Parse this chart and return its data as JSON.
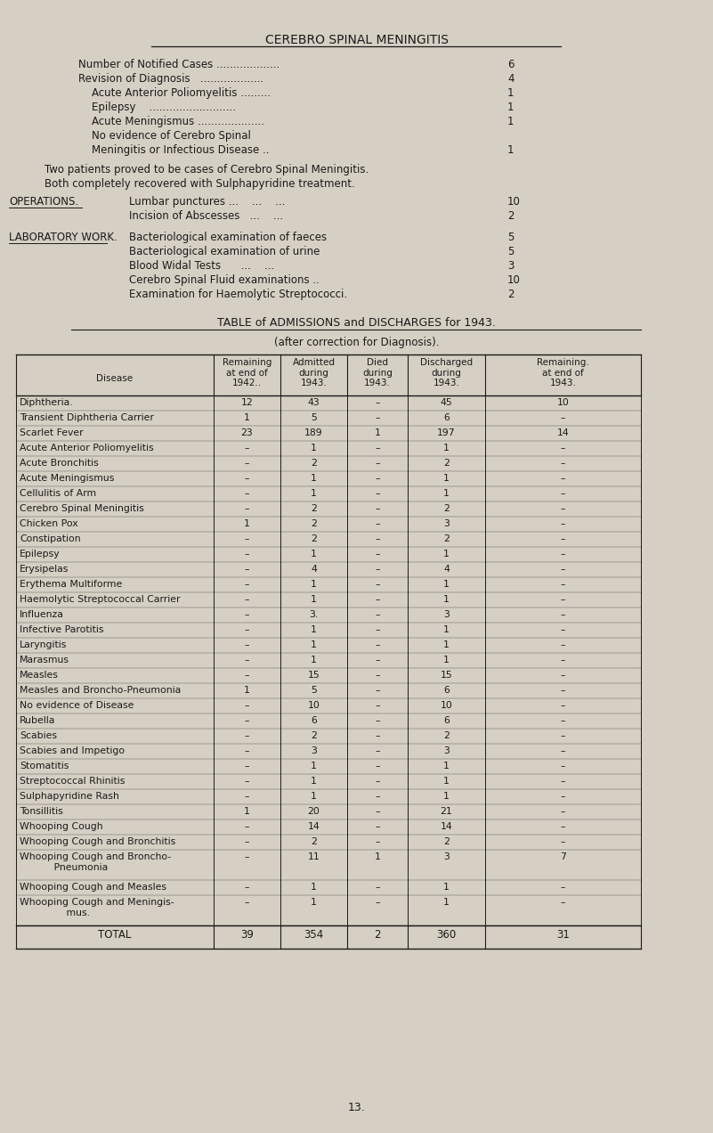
{
  "bg_color": "#d6d0c4",
  "text_color": "#1a1a1a",
  "title": "CEREBRO SPINAL MENINGITIS",
  "section1_lines": [
    [
      "Number of Notified Cases ...................",
      "6",
      0
    ],
    [
      "Revision of Diagnosis   ...................",
      "4",
      0
    ],
    [
      "    Acute Anterior Poliomyelitis .........",
      "1",
      1
    ],
    [
      "    Epilepsy    ..........................",
      "1",
      1
    ],
    [
      "    Acute Meningismus ....................",
      "1",
      1
    ],
    [
      "    No evidence of Cerebro Spinal",
      "",
      1
    ],
    [
      "    Meningitis or Infectious Disease .. ",
      "1",
      1
    ]
  ],
  "paragraph": [
    "Two patients proved to be cases of Cerebro Spinal Meningitis.",
    "Both completely recovered with Sulphapyridine treatment."
  ],
  "operations_label": "OPERATIONS.",
  "operations": [
    {
      "label": "Lumbar punctures ...    ...    ...   ",
      "value": "10"
    },
    {
      "label": "Incision of Abscesses   ...    ...  ",
      "value": "2"
    }
  ],
  "lab_label": "LABORATORY WORK.",
  "lab": [
    {
      "label": "Bacteriological examination of faeces ",
      "value": "5"
    },
    {
      "label": "Bacteriological examination of urine  ",
      "value": "5"
    },
    {
      "label": "Blood Widal Tests      ...    ...     ",
      "value": "3"
    },
    {
      "label": "Cerebro Spinal Fluid examinations ..  ",
      "value": "10"
    },
    {
      "label": "Examination for Haemolytic Streptococci. ",
      "value": "2"
    }
  ],
  "table_title": "TABLE of ADMISSIONS and DISCHARGES for 1943.",
  "table_subtitle": "(after correction for Diagnosis).",
  "col_headers": [
    "Disease",
    "Remaining\nat end of\n1942..",
    "Admitted\nduring\n1943.",
    "Died\nduring\n1943.",
    "Discharged\nduring\n1943.",
    "Remaining.\nat end of\n1943."
  ],
  "rows": [
    [
      "Diphtheria.",
      "12",
      "43",
      "-",
      "45",
      "10"
    ],
    [
      "Transient Diphtheria Carrier",
      "1",
      "5",
      "-",
      "6",
      "-"
    ],
    [
      "Scarlet Fever",
      "23",
      "189",
      "1",
      "197",
      "14"
    ],
    [
      "Acute Anterior Poliomyelitis",
      "-",
      "1",
      "-",
      "1",
      "-"
    ],
    [
      "Acute Bronchitis",
      "-",
      "2",
      "-",
      "2",
      "-"
    ],
    [
      "Acute Meningismus",
      "-",
      "1",
      "-",
      "1",
      "-"
    ],
    [
      "Cellulitis of Arm",
      "-",
      "1",
      "-",
      "1",
      "-"
    ],
    [
      "Cerebro Spinal Meningitis",
      "-",
      "2",
      "-",
      "2",
      "-"
    ],
    [
      "Chicken Pox",
      "1",
      "2",
      "-",
      "3",
      "-"
    ],
    [
      "Constipation",
      "-",
      "2",
      "-",
      "2",
      "-"
    ],
    [
      "Epilepsy",
      "-",
      "1",
      "-",
      "1",
      "-"
    ],
    [
      "Erysipelas",
      "-",
      "4",
      "-",
      "4",
      "-"
    ],
    [
      "Erythema Multiforme",
      "-",
      "1",
      "-",
      "1",
      "-"
    ],
    [
      "Haemolytic Streptococcal Carrier",
      "-",
      "1",
      "-",
      "1",
      "-"
    ],
    [
      "Influenza",
      "-",
      "3.",
      "-",
      "3",
      "-"
    ],
    [
      "Infective Parotitis",
      "-",
      "1",
      "-",
      "1",
      "-"
    ],
    [
      "Laryngitis",
      "-",
      "1",
      "-",
      "1",
      "-"
    ],
    [
      "Marasmus",
      "-",
      "1",
      "-",
      "1",
      "-"
    ],
    [
      "Measles",
      "-",
      "15",
      "-",
      "15",
      "-"
    ],
    [
      "Measles and Broncho-Pneumonia",
      "1",
      "5",
      "-",
      "6",
      "-"
    ],
    [
      "No evidence of Disease",
      "-",
      "10",
      "-",
      "10",
      "-"
    ],
    [
      "Rubella",
      "-",
      "6",
      "-",
      "6",
      "-"
    ],
    [
      "Scabies",
      "-",
      "2",
      "-",
      "2",
      "-"
    ],
    [
      "Scabies and Impetigo",
      "-",
      "3",
      "-",
      "3",
      "-"
    ],
    [
      "Stomatitis",
      "-",
      "1",
      "-",
      "1",
      "-"
    ],
    [
      "Streptococcal Rhinitis",
      "-",
      "1",
      "-",
      "1",
      "-"
    ],
    [
      "Sulphapyridine Rash",
      "-",
      "1",
      "-",
      "1",
      "-"
    ],
    [
      "Tonsillitis",
      "1",
      "20",
      "-",
      "21",
      "-"
    ],
    [
      "Whooping Cough",
      "-",
      "14",
      "-",
      "14",
      "-"
    ],
    [
      "Whooping Cough and Bronchitis",
      "-",
      "2",
      "-",
      "2",
      "-"
    ],
    [
      "Whooping Cough and Broncho-\n           Pneumonia",
      "-",
      "11",
      "1",
      "3",
      "7"
    ],
    [
      "Whooping Cough and Measles",
      "-",
      "1",
      "-",
      "1",
      "-"
    ],
    [
      "Whooping Cough and Meningis-\n               mus.",
      "-",
      "1",
      "-",
      "1",
      "-"
    ]
  ],
  "totals": [
    "TOTAL",
    "39",
    "354",
    "2",
    "360",
    "31"
  ],
  "page_number": "13."
}
